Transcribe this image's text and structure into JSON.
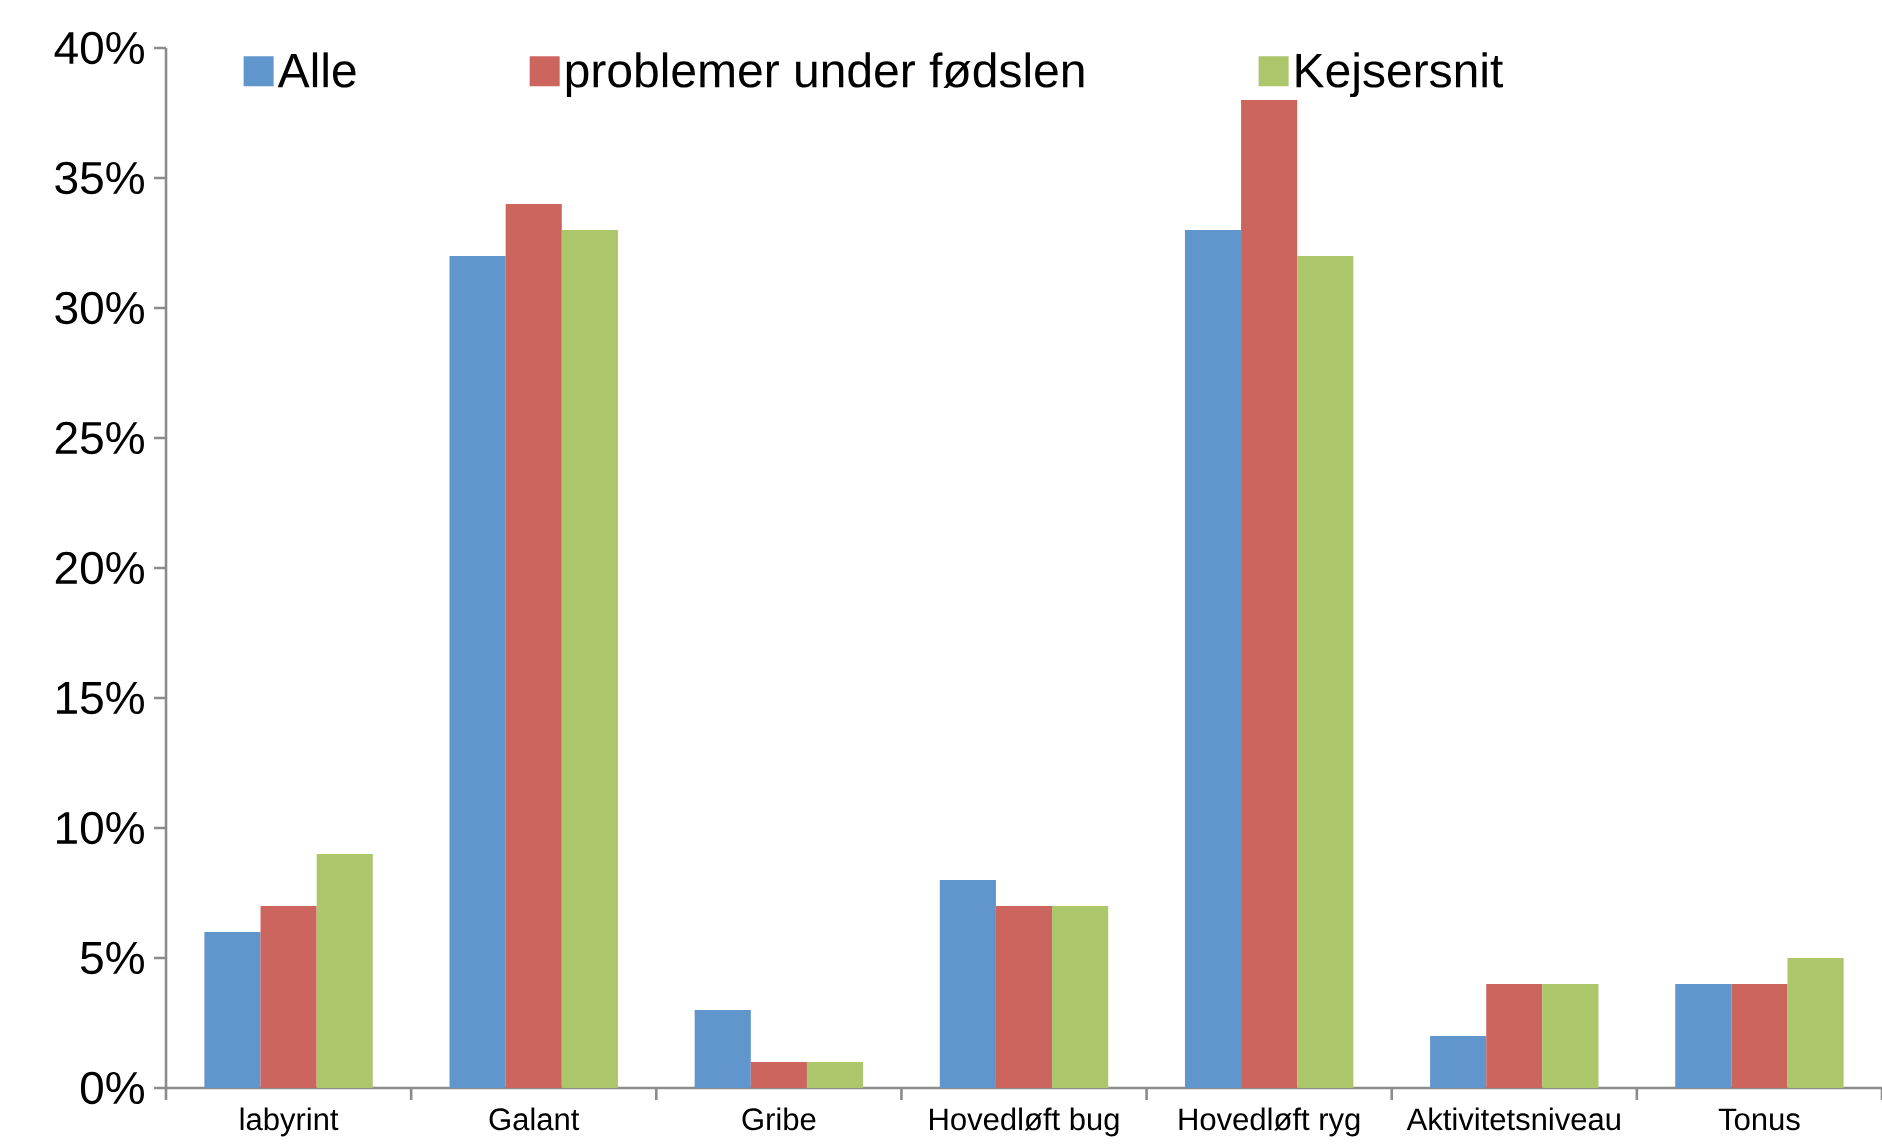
{
  "chart_data": {
    "type": "bar",
    "categories": [
      "labyrint",
      "Galant",
      "Gribe",
      "Hovedløft bug",
      "Hovedløft ryg",
      "Aktivitetsniveau",
      "Tonus"
    ],
    "series": [
      {
        "name": "Alle",
        "color": "#6096cb",
        "values": [
          6,
          32,
          3,
          8,
          33,
          2,
          4
        ]
      },
      {
        "name": "problemer under fødslen",
        "color": "#cd655f",
        "values": [
          7,
          34,
          1,
          7,
          38,
          4,
          4
        ]
      },
      {
        "name": "Kejsersnit",
        "color": "#acc66c",
        "values": [
          9,
          33,
          1,
          7,
          32,
          4,
          5
        ]
      }
    ],
    "ylim": [
      0,
      40
    ],
    "yticks": [
      {
        "value": 0,
        "label": "0%"
      },
      {
        "value": 5,
        "label": "5%"
      },
      {
        "value": 10,
        "label": "10%"
      },
      {
        "value": 15,
        "label": "15%"
      },
      {
        "value": 20,
        "label": "20%"
      },
      {
        "value": 25,
        "label": "25%"
      },
      {
        "value": 30,
        "label": "30%"
      },
      {
        "value": 35,
        "label": "35%"
      },
      {
        "value": 40,
        "label": "40%"
      }
    ],
    "legend": "top"
  }
}
